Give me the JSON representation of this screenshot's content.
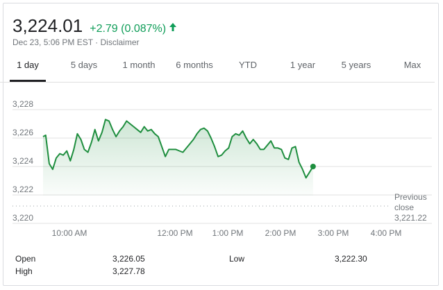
{
  "header": {
    "price": "3,224.01",
    "change": "+2.79 (0.087%)",
    "change_color": "#0f9d58",
    "arrow_icon": "arrow-up-icon",
    "meta": "Dec 23, 5:06 PM EST · Disclaimer"
  },
  "tabs": [
    {
      "label": "1 day",
      "active": true
    },
    {
      "label": "5 days",
      "active": false
    },
    {
      "label": "1 month",
      "active": false
    },
    {
      "label": "6 months",
      "active": false
    },
    {
      "label": "YTD",
      "active": false
    },
    {
      "label": "1 year",
      "active": false
    },
    {
      "label": "5 years",
      "active": false
    },
    {
      "label": "Max",
      "active": false
    }
  ],
  "chart_data": {
    "type": "area",
    "line_color": "#1e8e3e",
    "y_ticks": [
      "3,228",
      "3,226",
      "3,224",
      "3,222",
      "3,220"
    ],
    "y_tick_values": [
      3228,
      3226,
      3224,
      3222,
      3220
    ],
    "ylim": [
      3220,
      3229
    ],
    "x_ticks": [
      "10:00 AM",
      "12:00 PM",
      "1:00 PM",
      "2:00 PM",
      "3:00 PM",
      "4:00 PM"
    ],
    "x_tick_values": [
      600,
      720,
      780,
      840,
      900,
      960
    ],
    "xlim": [
      570,
      960
    ],
    "previous_close": {
      "label_line1": "Previous",
      "label_line2": "close",
      "value_text": "3,221.22",
      "value": 3221.22
    },
    "series": [
      {
        "points": [
          [
            570,
            3226.1
          ],
          [
            573,
            3226.2
          ],
          [
            577,
            3224.2
          ],
          [
            581,
            3223.8
          ],
          [
            585,
            3224.6
          ],
          [
            589,
            3224.9
          ],
          [
            593,
            3224.8
          ],
          [
            597,
            3225.1
          ],
          [
            601,
            3224.4
          ],
          [
            605,
            3225.2
          ],
          [
            609,
            3226.3
          ],
          [
            613,
            3225.9
          ],
          [
            617,
            3225.2
          ],
          [
            621,
            3225.0
          ],
          [
            625,
            3225.7
          ],
          [
            629,
            3226.6
          ],
          [
            633,
            3225.8
          ],
          [
            637,
            3226.4
          ],
          [
            641,
            3227.3
          ],
          [
            645,
            3227.2
          ],
          [
            649,
            3226.6
          ],
          [
            653,
            3226.1
          ],
          [
            657,
            3226.5
          ],
          [
            661,
            3226.8
          ],
          [
            665,
            3227.2
          ],
          [
            669,
            3227.0
          ],
          [
            673,
            3226.8
          ],
          [
            677,
            3226.6
          ],
          [
            681,
            3226.4
          ],
          [
            685,
            3226.8
          ],
          [
            689,
            3226.5
          ],
          [
            693,
            3226.6
          ],
          [
            697,
            3226.3
          ],
          [
            701,
            3226.1
          ],
          [
            705,
            3225.4
          ],
          [
            709,
            3224.7
          ],
          [
            713,
            3225.2
          ],
          [
            717,
            3225.2
          ],
          [
            721,
            3225.2
          ],
          [
            725,
            3225.1
          ],
          [
            729,
            3225.0
          ],
          [
            733,
            3225.3
          ],
          [
            737,
            3225.6
          ],
          [
            741,
            3225.9
          ],
          [
            745,
            3226.3
          ],
          [
            749,
            3226.6
          ],
          [
            753,
            3226.7
          ],
          [
            757,
            3226.5
          ],
          [
            761,
            3226.0
          ],
          [
            765,
            3225.4
          ],
          [
            769,
            3224.7
          ],
          [
            773,
            3224.8
          ],
          [
            777,
            3225.1
          ],
          [
            781,
            3225.3
          ],
          [
            785,
            3226.1
          ],
          [
            789,
            3226.3
          ],
          [
            793,
            3226.2
          ],
          [
            797,
            3226.5
          ],
          [
            801,
            3226.0
          ],
          [
            805,
            3225.6
          ],
          [
            809,
            3225.9
          ],
          [
            813,
            3225.6
          ],
          [
            817,
            3225.2
          ],
          [
            821,
            3225.2
          ],
          [
            825,
            3225.5
          ],
          [
            829,
            3225.8
          ],
          [
            833,
            3225.3
          ],
          [
            837,
            3225.3
          ],
          [
            841,
            3225.2
          ],
          [
            845,
            3224.6
          ],
          [
            849,
            3224.5
          ],
          [
            853,
            3225.3
          ],
          [
            857,
            3225.4
          ],
          [
            861,
            3224.3
          ],
          [
            865,
            3223.8
          ],
          [
            869,
            3223.2
          ],
          [
            873,
            3223.6
          ],
          [
            877,
            3224.0
          ]
        ]
      }
    ]
  },
  "stats": {
    "open_label": "Open",
    "open_value": "3,226.05",
    "high_label": "High",
    "high_value": "3,227.78",
    "low_label": "Low",
    "low_value": "3,222.30"
  }
}
